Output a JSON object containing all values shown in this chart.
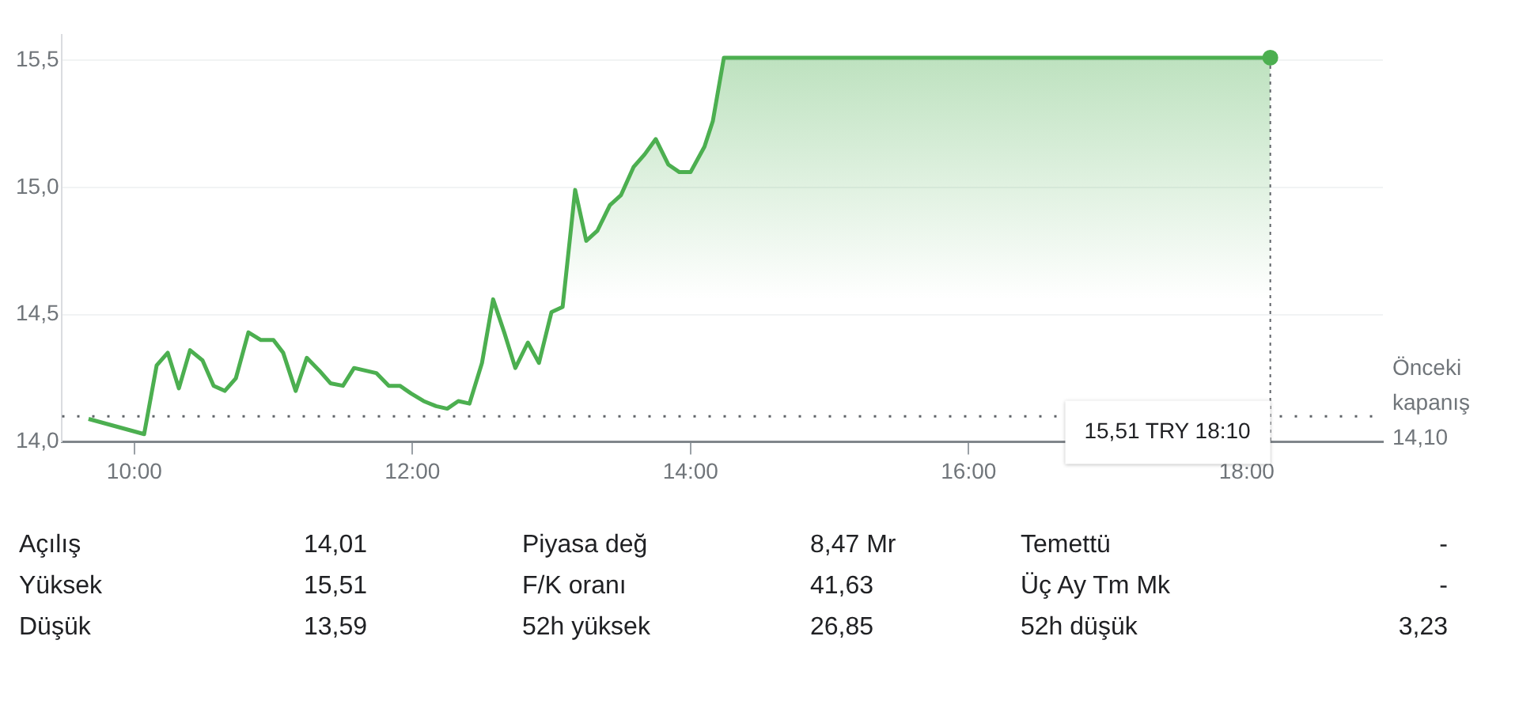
{
  "chart_data": {
    "type": "area",
    "x": [
      9.67,
      10.07,
      10.16,
      10.24,
      10.32,
      10.4,
      10.49,
      10.57,
      10.65,
      10.73,
      10.82,
      10.91,
      11.0,
      11.07,
      11.16,
      11.24,
      11.33,
      11.41,
      11.5,
      11.58,
      11.66,
      11.74,
      11.83,
      11.91,
      11.99,
      12.08,
      12.17,
      12.25,
      12.33,
      12.41,
      12.5,
      12.58,
      12.66,
      12.74,
      12.83,
      12.91,
      13.0,
      13.08,
      13.17,
      13.25,
      13.33,
      13.42,
      13.5,
      13.59,
      13.67,
      13.75,
      13.84,
      13.92,
      14.0,
      14.1,
      14.16,
      14.24,
      18.17
    ],
    "series": [
      {
        "color": "#4caf50",
        "values": [
          14.09,
          14.03,
          14.3,
          14.35,
          14.21,
          14.36,
          14.32,
          14.22,
          14.2,
          14.25,
          14.43,
          14.4,
          14.4,
          14.35,
          14.2,
          14.33,
          14.28,
          14.23,
          14.22,
          14.29,
          14.28,
          14.27,
          14.22,
          14.22,
          14.19,
          14.16,
          14.14,
          14.13,
          14.16,
          14.15,
          14.31,
          14.56,
          14.43,
          14.29,
          14.39,
          14.31,
          14.51,
          14.53,
          14.99,
          14.79,
          14.83,
          14.93,
          14.97,
          15.08,
          15.13,
          15.19,
          15.09,
          15.06,
          15.06,
          15.16,
          15.26,
          15.51,
          15.51
        ]
      }
    ],
    "xlim": [
      9.48,
      18.98
    ],
    "ylim": [
      14.0,
      15.6
    ],
    "xticks": [
      {
        "value": 10,
        "label": "10:00"
      },
      {
        "value": 12,
        "label": "12:00"
      },
      {
        "value": 14,
        "label": "14:00"
      },
      {
        "value": 16,
        "label": "16:00"
      },
      {
        "value": 18,
        "label": "18:00"
      }
    ],
    "yticks": [
      {
        "value": 14.0,
        "label": "14,0"
      },
      {
        "value": 14.5,
        "label": "14,5"
      },
      {
        "value": 15.0,
        "label": "15,0"
      },
      {
        "value": 15.5,
        "label": "15,5"
      }
    ],
    "grid": "y",
    "ref_lines": [
      {
        "axis": "y",
        "value": 14.1,
        "label": "Önceki kapanış 14,10",
        "line_style": "dotted"
      }
    ],
    "annotations": [
      {
        "text": "15,51 TRY 18:10",
        "x": 18.17,
        "y": 15.51
      },
      "Açılış",
      "14,01",
      "Piyasa değ",
      "8,47 Mr",
      "Temettü",
      "-",
      "Yüksek",
      "15,51",
      "F/K oranı",
      "41,63",
      "Üç Ay Tm Mk",
      "-",
      "Düşük",
      "13,59",
      "52h yüksek",
      "26,85",
      "52h düşük",
      "3,23"
    ]
  }
}
